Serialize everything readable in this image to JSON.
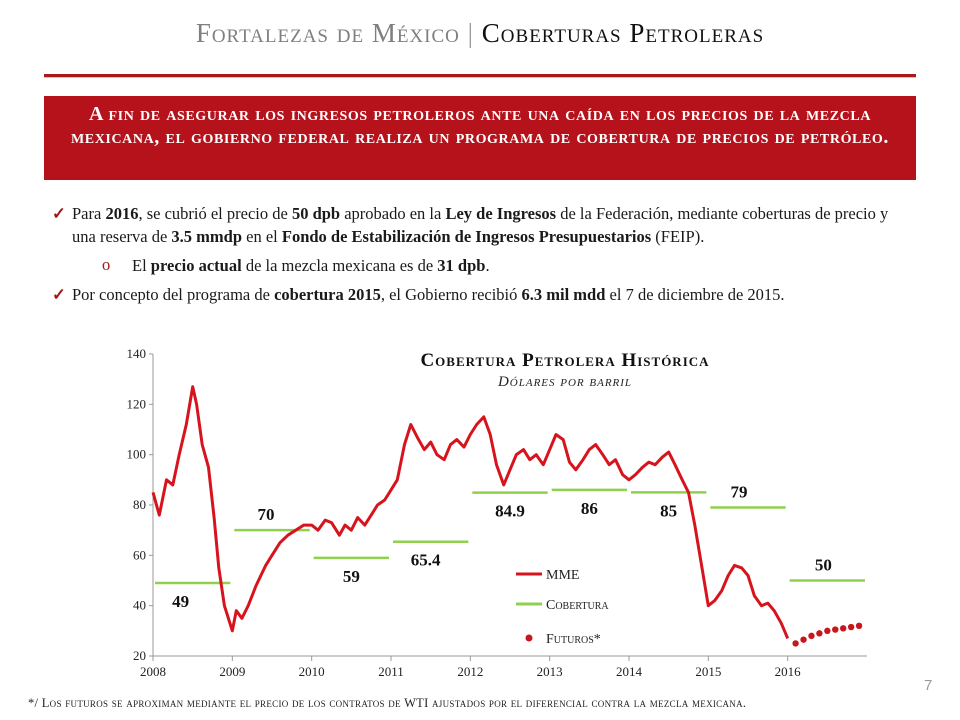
{
  "header": {
    "title_left": "Fortalezas de México",
    "separator": "|",
    "title_right": "Coberturas Petroleras"
  },
  "banner": {
    "text": "A fin de asegurar los ingresos petroleros ante una caída en los precios de la mezcla mexicana, el gobierno federal realiza un programa de cobertura de precios de petróleo."
  },
  "bullets": {
    "b1": {
      "t1": "Para ",
      "bold1": "2016",
      "t2": ", se cubrió el precio de ",
      "bold2": "50 dpb",
      "t3": " aprobado en la ",
      "bold3": "Ley de Ingresos",
      "t4": " de la Federación, mediante coberturas de precio y una reserva de ",
      "bold4": "3.5 mmdp",
      "t5": " en el ",
      "bold5": "Fondo de Estabilización de Ingresos Presupuestarios",
      "t6": " (FEIP)."
    },
    "sub1": {
      "t1": "El ",
      "bold1": "precio actual",
      "t2": " de la mezcla mexicana es de ",
      "bold2": "31 dpb",
      "t3": "."
    },
    "b2": {
      "t1": "Por concepto del programa de ",
      "bold1": "cobertura 2015",
      "t2": ", el Gobierno recibió ",
      "bold2": "6.3 mil mdd",
      "t3": " el 7 de diciembre de 2015."
    }
  },
  "chart_data": {
    "type": "line",
    "title": "Cobertura Petrolera Histórica",
    "subtitle": "Dólares por barril",
    "xlabel": "",
    "ylabel": "",
    "xlim": [
      2008,
      2017
    ],
    "ylim": [
      20,
      140
    ],
    "xticks": [
      "2008",
      "2009",
      "2010",
      "2011",
      "2012",
      "2013",
      "2014",
      "2015",
      "2016"
    ],
    "yticks": [
      "20",
      "40",
      "60",
      "80",
      "100",
      "120",
      "140"
    ],
    "colors": {
      "mme": "#d7141d",
      "cobertura": "#8fd14f",
      "futuros": "#c8161d"
    },
    "legend": {
      "position": "bottom-right",
      "mme": "MME",
      "cobertura": "Cobertura",
      "futuros": "Futuros*"
    },
    "series": [
      {
        "name": "MME",
        "x": [
          2008.0,
          2008.08,
          2008.17,
          2008.25,
          2008.33,
          2008.42,
          2008.5,
          2008.55,
          2008.62,
          2008.7,
          2008.77,
          2008.83,
          2008.9,
          2008.95,
          2009.0,
          2009.05,
          2009.12,
          2009.2,
          2009.3,
          2009.42,
          2009.5,
          2009.6,
          2009.7,
          2009.8,
          2009.9,
          2010.0,
          2010.08,
          2010.17,
          2010.25,
          2010.35,
          2010.42,
          2010.5,
          2010.58,
          2010.67,
          2010.75,
          2010.83,
          2010.92,
          2011.0,
          2011.08,
          2011.17,
          2011.25,
          2011.33,
          2011.42,
          2011.5,
          2011.58,
          2011.67,
          2011.75,
          2011.83,
          2011.92,
          2012.0,
          2012.08,
          2012.17,
          2012.25,
          2012.33,
          2012.42,
          2012.5,
          2012.58,
          2012.67,
          2012.75,
          2012.83,
          2012.92,
          2013.0,
          2013.08,
          2013.17,
          2013.25,
          2013.33,
          2013.42,
          2013.5,
          2013.58,
          2013.67,
          2013.75,
          2013.83,
          2013.92,
          2014.0,
          2014.08,
          2014.17,
          2014.25,
          2014.33,
          2014.42,
          2014.5,
          2014.58,
          2014.67,
          2014.75,
          2014.83,
          2014.92,
          2015.0,
          2015.08,
          2015.17,
          2015.25,
          2015.33,
          2015.42,
          2015.5,
          2015.58,
          2015.67,
          2015.75,
          2015.83,
          2015.92,
          2016.0
        ],
        "y": [
          85,
          76,
          90,
          88,
          100,
          112,
          127,
          120,
          104,
          95,
          75,
          55,
          40,
          35,
          30,
          38,
          35,
          40,
          48,
          56,
          60,
          65,
          68,
          70,
          72,
          72,
          70,
          74,
          73,
          68,
          72,
          70,
          75,
          72,
          76,
          80,
          82,
          86,
          90,
          104,
          112,
          107,
          102,
          105,
          100,
          98,
          104,
          106,
          103,
          108,
          112,
          115,
          108,
          96,
          88,
          94,
          100,
          102,
          98,
          100,
          96,
          102,
          108,
          106,
          97,
          94,
          98,
          102,
          104,
          100,
          96,
          98,
          92,
          90,
          92,
          95,
          97,
          96,
          99,
          101,
          96,
          90,
          85,
          72,
          55,
          40,
          42,
          46,
          52,
          56,
          55,
          52,
          44,
          40,
          41,
          38,
          33,
          27
        ]
      },
      {
        "name": "Cobertura",
        "segments": [
          {
            "x0": 2008.0,
            "x1": 2009.0,
            "y": 49,
            "label": "49"
          },
          {
            "x0": 2009.0,
            "x1": 2010.0,
            "y": 70,
            "label": "70"
          },
          {
            "x0": 2010.0,
            "x1": 2011.0,
            "y": 59,
            "label": "59"
          },
          {
            "x0": 2011.0,
            "x1": 2012.0,
            "y": 65.4,
            "label": "65.4"
          },
          {
            "x0": 2012.0,
            "x1": 2013.0,
            "y": 84.9,
            "label": "84.9"
          },
          {
            "x0": 2013.0,
            "x1": 2014.0,
            "y": 86,
            "label": "86"
          },
          {
            "x0": 2014.0,
            "x1": 2015.0,
            "y": 85,
            "label": "85"
          },
          {
            "x0": 2015.0,
            "x1": 2016.0,
            "y": 79,
            "label": "79"
          },
          {
            "x0": 2016.0,
            "x1": 2017.0,
            "y": 50,
            "label": "50"
          }
        ]
      },
      {
        "name": "Futuros*",
        "x": [
          2016.1,
          2016.2,
          2016.3,
          2016.4,
          2016.5,
          2016.6,
          2016.7,
          2016.8,
          2016.9
        ],
        "y": [
          25,
          26.5,
          28,
          29,
          30,
          30.5,
          31,
          31.5,
          32
        ]
      }
    ]
  },
  "footnote": "*/ Los futuros se aproximan mediante el precio de los contratos de WTI ajustados por el diferencial contra la mezcla mexicana.",
  "page_number": "7"
}
